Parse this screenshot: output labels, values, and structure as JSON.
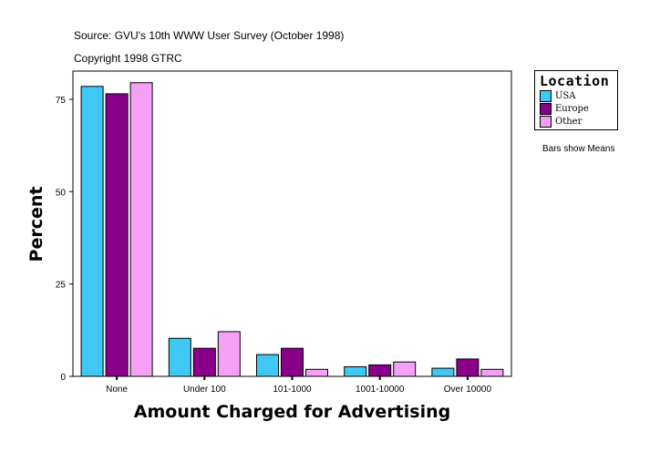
{
  "source_line": "Source: GVU's 10th WWW User Survey (October 1998)",
  "copyright_line": "Copyright 1998 GTRC",
  "note": "Bars show Means",
  "chart_data": {
    "type": "bar",
    "title": "",
    "xlabel": "Amount Charged for Advertising",
    "ylabel": "Percent",
    "ylim": [
      0,
      82
    ],
    "yticks": [
      0,
      25,
      50,
      75
    ],
    "grid": false,
    "legend_title": "Location",
    "legend_placement": "right",
    "categories": [
      "None",
      "Under 100",
      "101-1000",
      "1001-10000",
      "Over 10000"
    ],
    "series": [
      {
        "name": "USA",
        "color": "#40c8f4",
        "values": [
          78.5,
          10.3,
          5.9,
          2.6,
          2.2
        ]
      },
      {
        "name": "Europe",
        "color": "#8b008b",
        "values": [
          76.5,
          7.6,
          7.6,
          3.1,
          4.7
        ]
      },
      {
        "name": "Other",
        "color": "#f4a0f4",
        "values": [
          79.5,
          12.1,
          1.9,
          3.9,
          1.9
        ]
      }
    ]
  }
}
